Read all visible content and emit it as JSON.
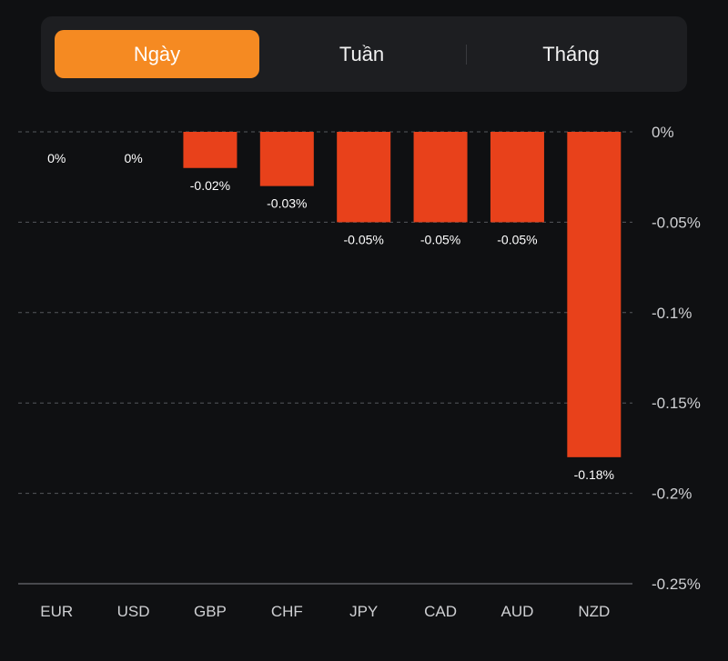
{
  "tabs": [
    {
      "label": "Ngày",
      "active": true
    },
    {
      "label": "Tuần",
      "active": false
    },
    {
      "label": "Tháng",
      "active": false
    }
  ],
  "colors": {
    "bar": "#e8411b",
    "active_tab": "#f58a22"
  },
  "chart_data": {
    "type": "bar",
    "title": "",
    "xlabel": "",
    "ylabel": "",
    "categories": [
      "EUR",
      "USD",
      "GBP",
      "CHF",
      "JPY",
      "CAD",
      "AUD",
      "NZD"
    ],
    "values": [
      0,
      0,
      -0.02,
      -0.03,
      -0.05,
      -0.05,
      -0.05,
      -0.18
    ],
    "data_labels": [
      "0%",
      "0%",
      "-0.02%",
      "-0.03%",
      "-0.05%",
      "-0.05%",
      "-0.05%",
      "-0.18%"
    ],
    "ylim": [
      -0.25,
      0
    ],
    "yticks": [
      0,
      -0.05,
      -0.1,
      -0.15,
      -0.2,
      -0.25
    ],
    "ytick_labels": [
      "0%",
      "-0.05%",
      "-0.1%",
      "-0.15%",
      "-0.2%",
      "-0.25%"
    ],
    "y_axis_position": "right",
    "grid": true,
    "legend": "none"
  }
}
